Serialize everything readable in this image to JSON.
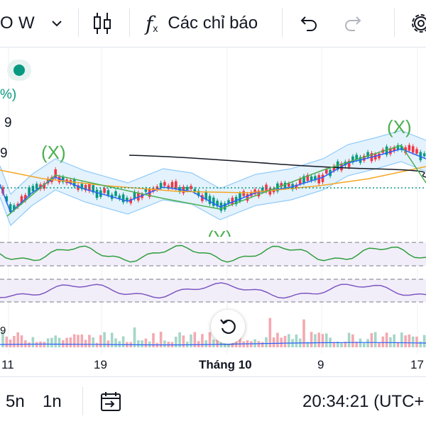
{
  "toolbar": {
    "symbol_fragment": "O",
    "interval": "W",
    "chart_type_icon": "candles-icon",
    "indicators_label": "Các chỉ báo",
    "undo_icon": "undo-icon",
    "redo_icon": "redo-icon",
    "settings_icon": "gear-icon"
  },
  "legend": {
    "percent_fragment": "%)",
    "value_fragment_1": "9",
    "value_fragment_2": "9",
    "value_fragment_3": "9"
  },
  "annotations": {
    "wave_x_left": "(X)",
    "wave_x_right": "(X)",
    "wave_y": "(Y)"
  },
  "x_axis": {
    "labels": [
      "11",
      "19",
      "Tháng 10",
      "9",
      "17"
    ]
  },
  "bottom": {
    "range_5n": "5n",
    "range_1n": "1n",
    "date_range_icon": "calendar-goto-icon",
    "time": "20:34:21 (UTC+"
  },
  "colors": {
    "up": "#089981",
    "down": "#f23645",
    "bollinger": "#2962ff",
    "ma": "#f5a623",
    "wave": "#4caf50",
    "rsi": "#2e9e3e",
    "osc": "#7e57c2",
    "band_fill": "#ede7f6"
  }
}
